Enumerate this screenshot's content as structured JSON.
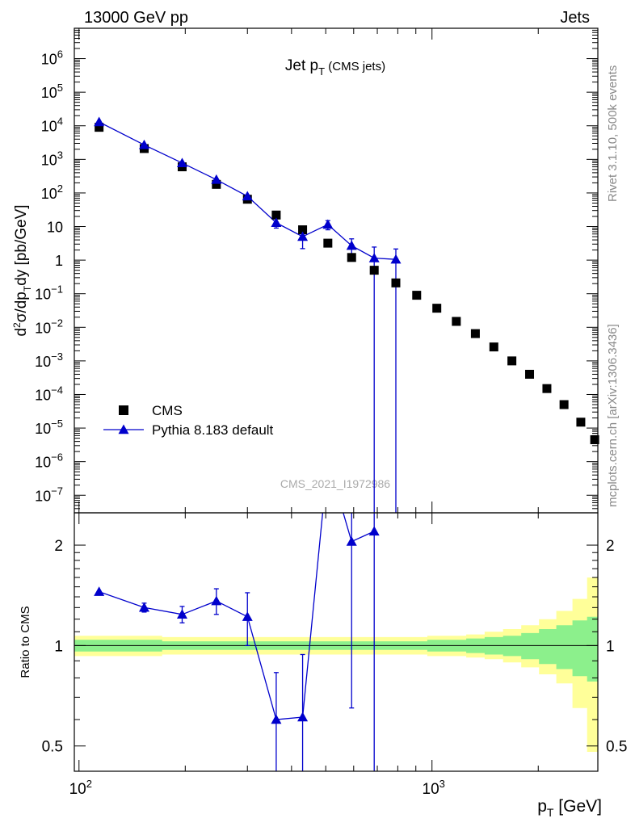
{
  "header": {
    "left": "13000 GeV pp",
    "right": "Jets"
  },
  "side": {
    "top": "Rivet 3.1.10,  500k events",
    "bottom": "mcplots.cern.ch [arXiv:1306.3436]"
  },
  "watermark": "CMS_2021_I1972986",
  "colors": {
    "data": "#000000",
    "mc": "#0000cc",
    "band_inner": "#8cf08c",
    "band_outer": "#ffff99"
  },
  "chart_data": [
    {
      "type": "scatter",
      "title": "Jet p_T (CMS jets)",
      "ylabel": "d²σ/dp_T dy [pb/GeV]",
      "xlabel": "p_T [GeV]",
      "xscale": "log",
      "yscale": "log",
      "xlim": [
        97,
        2950
      ],
      "ylim": [
        3e-08,
        8000000.0
      ],
      "x_tick_labels": [
        "10²",
        "10³"
      ],
      "y_tick_labels": [
        "10⁻⁷",
        "10⁻⁶",
        "10⁻⁵",
        "10⁻⁴",
        "10⁻³",
        "10⁻²",
        "10⁻¹",
        "1",
        "10",
        "10²",
        "10³",
        "10⁴",
        "10⁵",
        "10⁶"
      ],
      "legend_position": "bottom-left",
      "series": [
        {
          "name": "CMS",
          "marker": "square",
          "x": [
            114,
            153,
            196,
            245,
            300,
            362,
            430,
            507,
            592,
            686,
            790,
            905,
            1032,
            1172,
            1327,
            1497,
            1684,
            1890,
            2116,
            2366,
            2640,
            2890
          ],
          "y": [
            9000,
            2100,
            600,
            180,
            65,
            22,
            8,
            3.2,
            1.2,
            0.5,
            0.21,
            0.09,
            0.037,
            0.015,
            0.0065,
            0.0026,
            0.001,
            0.0004,
            0.00015,
            5e-05,
            1.5e-05,
            4.5e-06
          ]
        },
        {
          "name": "Pythia 8.183 default",
          "marker": "triangle",
          "x": [
            114,
            153,
            196,
            245,
            300,
            362,
            430,
            507,
            592,
            686,
            790
          ],
          "y": [
            13000,
            2700,
            780,
            250,
            80,
            13,
            5,
            11.5,
            2.7,
            1.15,
            1.05
          ],
          "yerr_low": [
            0,
            0,
            0,
            0,
            0,
            4,
            2.8,
            3.5,
            1.5,
            1.15,
            1.05
          ],
          "yerr_high": [
            0,
            0,
            0,
            0,
            0,
            4,
            2.8,
            3.5,
            1.6,
            1.3,
            1.1
          ]
        }
      ]
    },
    {
      "type": "line",
      "ylabel": "Ratio to CMS",
      "xscale": "log",
      "yscale": "log",
      "xlim": [
        97,
        2950
      ],
      "ylim": [
        0.42,
        2.5
      ],
      "y_tick_labels": [
        "0.5",
        "1",
        "2"
      ],
      "series": [
        {
          "name": "Pythia 8.183 default",
          "x": [
            114,
            153,
            196,
            245,
            300,
            362,
            430,
            507,
            592,
            686
          ],
          "y": [
            1.45,
            1.3,
            1.24,
            1.36,
            1.22,
            0.6,
            0.61,
            3.6,
            2.05,
            2.2
          ],
          "yerr_low": [
            0,
            0.04,
            0.07,
            0.12,
            0.22,
            0.6,
            0.61,
            0,
            1.4,
            2.2
          ],
          "yerr_high": [
            0,
            0.04,
            0.07,
            0.12,
            0.22,
            0.23,
            0.33,
            0,
            0.6,
            0.5
          ]
        }
      ],
      "uncertainty_band": {
        "edges": [
          97,
          133,
          172,
          220,
          270,
          330,
          395,
          468,
          550,
          640,
          740,
          850,
          970,
          1105,
          1250,
          1410,
          1590,
          1790,
          2010,
          2250,
          2500,
          2750,
          2950
        ],
        "inner_low": [
          0.96,
          0.96,
          0.97,
          0.97,
          0.97,
          0.97,
          0.97,
          0.97,
          0.97,
          0.97,
          0.97,
          0.97,
          0.96,
          0.96,
          0.95,
          0.94,
          0.93,
          0.91,
          0.88,
          0.85,
          0.81,
          0.78
        ],
        "inner_high": [
          1.04,
          1.04,
          1.03,
          1.03,
          1.03,
          1.03,
          1.03,
          1.03,
          1.03,
          1.03,
          1.03,
          1.03,
          1.04,
          1.04,
          1.05,
          1.06,
          1.07,
          1.09,
          1.12,
          1.15,
          1.19,
          1.22
        ],
        "outer_low": [
          0.93,
          0.93,
          0.94,
          0.94,
          0.94,
          0.94,
          0.94,
          0.94,
          0.94,
          0.94,
          0.94,
          0.94,
          0.93,
          0.93,
          0.92,
          0.91,
          0.89,
          0.86,
          0.82,
          0.77,
          0.65,
          0.48
        ],
        "outer_high": [
          1.07,
          1.07,
          1.06,
          1.06,
          1.06,
          1.06,
          1.06,
          1.06,
          1.06,
          1.06,
          1.06,
          1.06,
          1.07,
          1.07,
          1.08,
          1.1,
          1.12,
          1.15,
          1.2,
          1.27,
          1.38,
          1.6
        ]
      }
    }
  ]
}
